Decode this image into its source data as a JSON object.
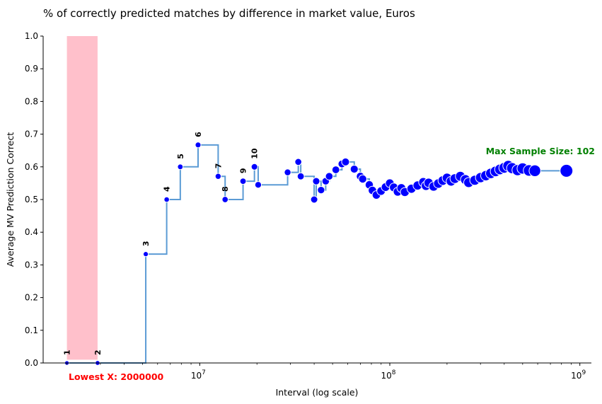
{
  "chart_data": {
    "type": "line",
    "title": "% of correctly predicted matches by difference in market value, Euros",
    "xlabel": "Interval (log scale)",
    "ylabel": "Average MV Prediction Correct",
    "x_scale": "log",
    "xlim": [
      1500000,
      1150000000
    ],
    "ylim": [
      0,
      1.0
    ],
    "y_ticks": [
      "0.0",
      "0.1",
      "0.2",
      "0.3",
      "0.4",
      "0.5",
      "0.6",
      "0.7",
      "0.8",
      "0.9",
      "1.0"
    ],
    "x_ticks": [
      {
        "base": "10",
        "exp": "7",
        "value": 10000000
      },
      {
        "base": "10",
        "exp": "8",
        "value": 100000000
      },
      {
        "base": "10",
        "exp": "9",
        "value": 1000000000
      }
    ],
    "highlight_region": {
      "x": [
        2000000,
        2900000
      ],
      "y": [
        0.01,
        1.0
      ],
      "color": "#ffc0cb"
    },
    "annotations": {
      "lowest_x": "Lowest X: 2000000",
      "max_sample": "Max Sample Size: 102"
    },
    "colors": {
      "line": "#5b9bd5",
      "points": "#0000ff",
      "lowest": "#ff0000",
      "max": "#008000"
    },
    "series": [
      {
        "x": [
          2000000,
          2900000,
          5200000,
          6700000,
          7900000,
          9800000,
          12500000,
          13600000,
          16900000,
          19400000,
          20300000,
          29000000,
          33000000,
          34000000,
          40000000,
          41000000,
          43500000,
          46000000,
          48000000,
          52000000,
          56000000,
          58500000,
          65000000,
          70000000,
          72000000,
          78000000,
          81000000,
          85000000,
          90000000,
          95000000,
          100000000,
          105000000,
          110000000,
          115000000,
          120000000,
          130000000,
          140000000,
          150000000,
          155000000,
          160000000,
          170000000,
          180000000,
          190000000,
          200000000,
          210000000,
          220000000,
          235000000,
          250000000,
          260000000,
          280000000,
          300000000,
          320000000,
          340000000,
          360000000,
          380000000,
          400000000,
          420000000,
          440000000,
          470000000,
          500000000,
          540000000,
          580000000,
          850000000
        ],
        "y": [
          0.0,
          0.0,
          0.333,
          0.5,
          0.6,
          0.667,
          0.571,
          0.5,
          0.556,
          0.6,
          0.545,
          0.583,
          0.615,
          0.571,
          0.5,
          0.556,
          0.529,
          0.556,
          0.571,
          0.591,
          0.609,
          0.615,
          0.593,
          0.571,
          0.563,
          0.545,
          0.528,
          0.514,
          0.526,
          0.538,
          0.55,
          0.537,
          0.524,
          0.535,
          0.523,
          0.533,
          0.543,
          0.553,
          0.542,
          0.551,
          0.54,
          0.549,
          0.558,
          0.566,
          0.556,
          0.564,
          0.571,
          0.561,
          0.552,
          0.559,
          0.567,
          0.573,
          0.58,
          0.586,
          0.592,
          0.597,
          0.603,
          0.596,
          0.59,
          0.595,
          0.589,
          0.588,
          0.588
        ],
        "n": [
          1,
          2,
          3,
          4,
          5,
          6,
          7,
          8,
          9,
          10,
          11,
          12,
          13,
          14,
          15,
          16,
          17,
          18,
          19,
          20,
          21,
          22,
          23,
          24,
          25,
          26,
          27,
          28,
          29,
          30,
          31,
          32,
          33,
          34,
          35,
          36,
          37,
          38,
          39,
          40,
          41,
          42,
          43,
          44,
          45,
          46,
          47,
          48,
          49,
          50,
          52,
          54,
          56,
          58,
          60,
          62,
          64,
          66,
          68,
          70,
          74,
          78,
          102
        ]
      }
    ]
  }
}
